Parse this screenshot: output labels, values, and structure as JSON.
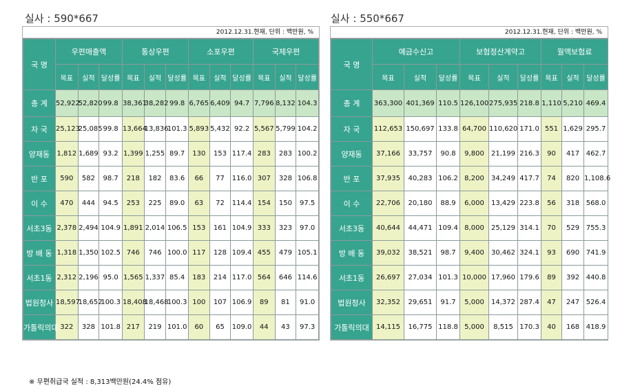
{
  "left": {
    "caption": "실사 : 590*667",
    "unit": "2012.12.31.현재, 단위 : 백만원, %",
    "name_header": "국 명",
    "groups": [
      "우편매출액",
      "통상우편",
      "소포우편",
      "국제우편"
    ],
    "sub": [
      "목표",
      "실적",
      "달성률"
    ],
    "rows": [
      {
        "name": "총 계",
        "vals": [
          "52,922",
          "52,820",
          "99.8",
          "38,361",
          "38,282",
          "99.8",
          "6,765",
          "6,409",
          "94.7",
          "7,796",
          "8,132",
          "104.3"
        ]
      },
      {
        "name": "자 국",
        "vals": [
          "25,123",
          "25,085",
          "99.8",
          "13,664",
          "13,836",
          "101.3",
          "5,893",
          "5,432",
          "92.2",
          "5,567",
          "5,799",
          "104.2"
        ]
      },
      {
        "name": "양재동",
        "vals": [
          "1,812",
          "1,689",
          "93.2",
          "1,399",
          "1,255",
          "89.7",
          "130",
          "153",
          "117.4",
          "283",
          "283",
          "100.2"
        ]
      },
      {
        "name": "반 포",
        "vals": [
          "590",
          "582",
          "98.7",
          "218",
          "182",
          "83.6",
          "66",
          "77",
          "116.0",
          "307",
          "328",
          "106.8"
        ]
      },
      {
        "name": "이 수",
        "vals": [
          "470",
          "444",
          "94.5",
          "253",
          "225",
          "89.0",
          "63",
          "72",
          "114.4",
          "154",
          "150",
          "97.5"
        ]
      },
      {
        "name": "서초3동",
        "vals": [
          "2,378",
          "2,494",
          "104.9",
          "1,891",
          "2,014",
          "106.5",
          "153",
          "161",
          "104.9",
          "333",
          "323",
          "97.0"
        ]
      },
      {
        "name": "방 배 동",
        "vals": [
          "1,318",
          "1,350",
          "102.5",
          "746",
          "746",
          "100.0",
          "117",
          "128",
          "109.4",
          "455",
          "479",
          "105.1"
        ]
      },
      {
        "name": "서초1동",
        "vals": [
          "2,312",
          "2,196",
          "95.0",
          "1,565",
          "1,337",
          "85.4",
          "183",
          "214",
          "117.0",
          "564",
          "646",
          "114.6"
        ]
      },
      {
        "name": "법원청사",
        "vals": [
          "18,597",
          "18,652",
          "100.3",
          "18,408",
          "18,468",
          "100.3",
          "100",
          "107",
          "106.9",
          "89",
          "81",
          "91.0"
        ]
      },
      {
        "name": "가톨릭의대",
        "vals": [
          "322",
          "328",
          "101.8",
          "217",
          "219",
          "101.0",
          "60",
          "65",
          "109.0",
          "44",
          "43",
          "97.3"
        ]
      }
    ],
    "note": "※ 우편취급국 실적 : 8,313백만원(24.4% 점유)"
  },
  "right": {
    "caption": "실사 : 550*667",
    "unit": "2012.12.31.현재, 단위 : 백만원, %",
    "name_header": "국 명",
    "groups": [
      "예금수신고",
      "보험정산계약고",
      "월액보험료"
    ],
    "sub": [
      "목표",
      "실적",
      "달성률"
    ],
    "rows": [
      {
        "name": "총 계",
        "vals": [
          "363,300",
          "401,369",
          "110.5",
          "126,100",
          "275,935",
          "218.8",
          "1,110",
          "5,210",
          "469.4"
        ]
      },
      {
        "name": "자 국",
        "vals": [
          "112,653",
          "150,697",
          "133.8",
          "64,700",
          "110,620",
          "171.0",
          "551",
          "1,629",
          "295.7"
        ]
      },
      {
        "name": "양재동",
        "vals": [
          "37,166",
          "33,757",
          "90.8",
          "9,800",
          "21,199",
          "216.3",
          "90",
          "417",
          "462.7"
        ]
      },
      {
        "name": "반 포",
        "vals": [
          "37,935",
          "40,283",
          "106.2",
          "8,200",
          "34,249",
          "417.7",
          "74",
          "820",
          "1,108.6"
        ]
      },
      {
        "name": "이 수",
        "vals": [
          "22,706",
          "20,180",
          "88.9",
          "6,000",
          "13,429",
          "223.8",
          "56",
          "318",
          "568.0"
        ]
      },
      {
        "name": "서초3동",
        "vals": [
          "40,644",
          "44,471",
          "109.4",
          "8,000",
          "25,129",
          "314.1",
          "70",
          "529",
          "755.3"
        ]
      },
      {
        "name": "방 배 동",
        "vals": [
          "39,032",
          "38,521",
          "98.7",
          "9,400",
          "30,462",
          "324.1",
          "93",
          "690",
          "741.9"
        ]
      },
      {
        "name": "서초1동",
        "vals": [
          "26,697",
          "27,034",
          "101.3",
          "10,000",
          "17,960",
          "179.6",
          "89",
          "392",
          "440.8"
        ]
      },
      {
        "name": "법원청사",
        "vals": [
          "32,352",
          "29,651",
          "91.7",
          "5,000",
          "14,372",
          "287.4",
          "47",
          "247",
          "526.4"
        ]
      },
      {
        "name": "가톨릭의대",
        "vals": [
          "14,115",
          "16,775",
          "118.8",
          "5,000",
          "8,515",
          "170.3",
          "40",
          "168",
          "418.9"
        ]
      }
    ]
  }
}
